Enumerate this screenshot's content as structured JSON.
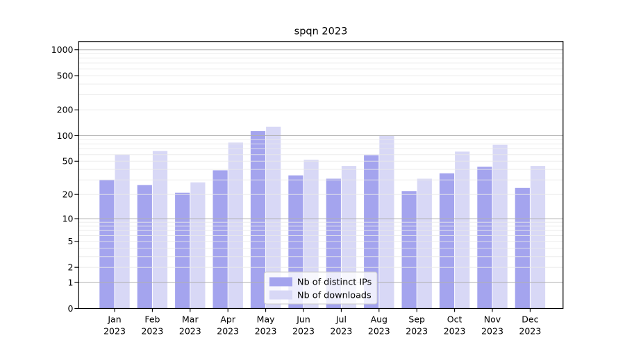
{
  "chart_data": {
    "type": "bar",
    "title": "spqn 2023",
    "y_scale": "symlog (position = k * ln(1+value))",
    "categories": [
      "Jan 2023",
      "Feb 2023",
      "Mar 2023",
      "Apr 2023",
      "May 2023",
      "Jun 2023",
      "Jul 2023",
      "Aug 2023",
      "Sep 2023",
      "Oct 2023",
      "Nov 2023",
      "Dec 2023"
    ],
    "month_labels": [
      "Jan",
      "Feb",
      "Mar",
      "Apr",
      "May",
      "Jun",
      "Jul",
      "Aug",
      "Sep",
      "Oct",
      "Nov",
      "Dec"
    ],
    "year_label": "2023",
    "series": [
      {
        "name": "Nb of distinct IPs",
        "color": "#a4a4ee",
        "values": [
          30,
          26,
          21,
          39,
          113,
          34,
          31,
          59,
          22,
          36,
          43,
          24
        ]
      },
      {
        "name": "Nb of downloads",
        "color": "#d8d8f6",
        "values": [
          60,
          66,
          28,
          83,
          127,
          52,
          44,
          100,
          31,
          65,
          78,
          44
        ]
      }
    ],
    "y_ticks": [
      0,
      1,
      2,
      5,
      10,
      20,
      50,
      100,
      200,
      500,
      1000
    ],
    "y_minor_gridlines": [
      2,
      3,
      4,
      5,
      6,
      7,
      8,
      9,
      20,
      30,
      40,
      50,
      60,
      70,
      80,
      90,
      200,
      300,
      400,
      500,
      600,
      700,
      800,
      900
    ],
    "y_major_gridlines": [
      1,
      10,
      100,
      1000
    ],
    "ylim": [
      0,
      1250
    ],
    "xlabel": "",
    "ylabel": "",
    "grid": "on, drawn above bars",
    "legend_position": "lower center (inside plot)",
    "colors": {
      "major_grid": "#b0b0b0",
      "minor_grid": "#e9e9e9",
      "axis": "#000000",
      "text": "#000000",
      "background": "#ffffff",
      "legend_border": "#cccccc",
      "legend_fill": "rgba(255,255,255,0.8)"
    }
  }
}
